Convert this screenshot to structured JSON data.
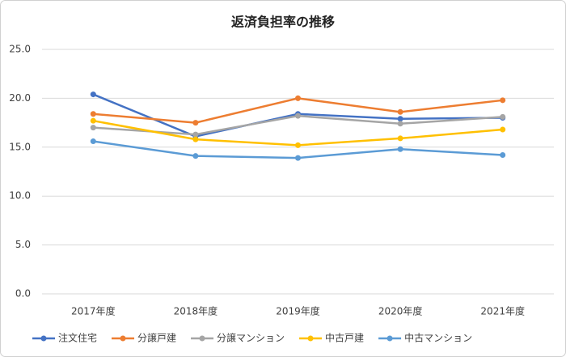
{
  "chart_data": {
    "type": "line",
    "title": "返済負担率の推移",
    "categories": [
      "2017年度",
      "2018年度",
      "2019年度",
      "2020年度",
      "2021年度"
    ],
    "series": [
      {
        "name": "注文住宅",
        "color": "#4472c4",
        "values": [
          20.4,
          16.1,
          18.4,
          17.9,
          18.0
        ]
      },
      {
        "name": "分譲戸建",
        "color": "#ed7d31",
        "values": [
          18.4,
          17.5,
          20.0,
          18.6,
          19.8
        ]
      },
      {
        "name": "分譲マンション",
        "color": "#a5a5a5",
        "values": [
          17.0,
          16.3,
          18.2,
          17.4,
          18.1
        ]
      },
      {
        "name": "中古戸建",
        "color": "#ffc000",
        "values": [
          17.7,
          15.8,
          15.2,
          15.9,
          16.8
        ]
      },
      {
        "name": "中古マンション",
        "color": "#5b9bd5",
        "values": [
          15.6,
          14.1,
          13.9,
          14.8,
          14.2
        ]
      }
    ],
    "ylim": [
      0,
      25
    ],
    "yticks": [
      {
        "value": 0,
        "label": "0.0"
      },
      {
        "value": 5,
        "label": "5.0"
      },
      {
        "value": 10,
        "label": "10.0"
      },
      {
        "value": 15,
        "label": "15.0"
      },
      {
        "value": 20,
        "label": "20.0"
      },
      {
        "value": 25,
        "label": "25.0"
      }
    ],
    "grid": true,
    "legend": "bottom"
  }
}
